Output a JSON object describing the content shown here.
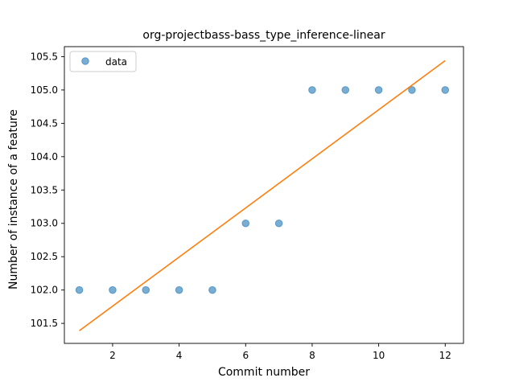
{
  "chart_data": {
    "type": "scatter",
    "title": "org-projectbass-bass_type_inference-linear",
    "xlabel": "Commit number",
    "ylabel": "Number of instance of a feature",
    "xlim": [
      0.55,
      12.55
    ],
    "ylim": [
      101.2,
      105.65
    ],
    "x_ticks": [
      2,
      4,
      6,
      8,
      10,
      12
    ],
    "x_tick_labels": [
      "2",
      "4",
      "6",
      "8",
      "10",
      "12"
    ],
    "y_ticks": [
      101.5,
      102.0,
      102.5,
      103.0,
      103.5,
      104.0,
      104.5,
      105.0,
      105.5
    ],
    "y_tick_labels": [
      "101.5",
      "102.0",
      "102.5",
      "103.0",
      "103.5",
      "104.0",
      "104.5",
      "105.0",
      "105.5"
    ],
    "grid": false,
    "legend": {
      "position": "top-left",
      "entries": [
        "data"
      ]
    },
    "series": [
      {
        "name": "data",
        "kind": "scatter",
        "color": "#1f77b4",
        "x": [
          1,
          2,
          3,
          4,
          5,
          6,
          7,
          8,
          9,
          10,
          11,
          12
        ],
        "y": [
          102,
          102,
          102,
          102,
          102,
          103,
          103,
          105,
          105,
          105,
          105,
          105
        ]
      },
      {
        "kind": "line",
        "color": "#ff7f0e",
        "x": [
          1,
          12
        ],
        "y": [
          101.39,
          105.44
        ]
      }
    ]
  }
}
